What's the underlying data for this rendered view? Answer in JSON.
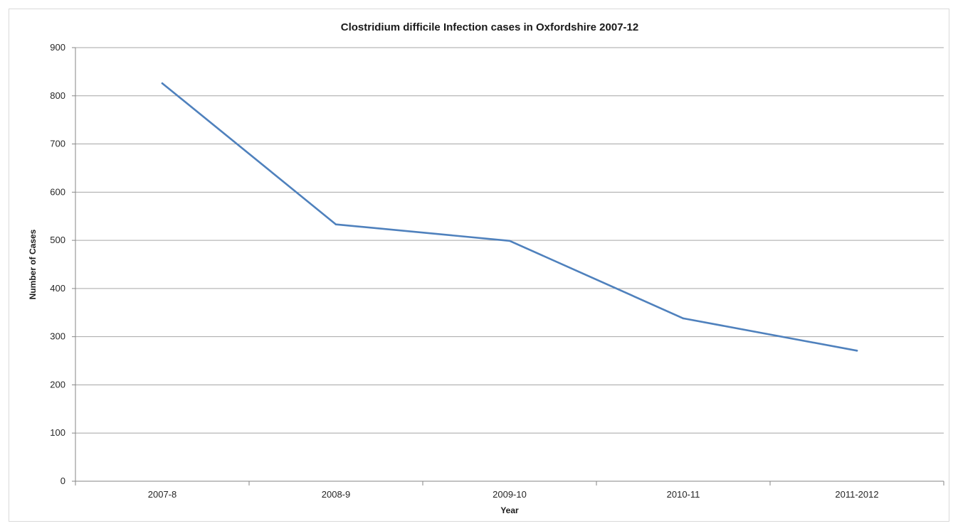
{
  "chart_data": {
    "type": "line",
    "title": "Clostridium difficile Infection  cases in Oxfordshire 2007-12",
    "xlabel": "Year",
    "ylabel": "Number of Cases",
    "categories": [
      "2007-8",
      "2008-9",
      "2009-10",
      "2010-11",
      "2011-2012"
    ],
    "series": [
      {
        "values": [
          826,
          533,
          499,
          338,
          271
        ],
        "color": "#4f81bd"
      }
    ],
    "ylim": [
      0,
      900
    ],
    "yticks": [
      0,
      100,
      200,
      300,
      400,
      500,
      600,
      700,
      800,
      900
    ],
    "grid": true,
    "legend": "none"
  }
}
